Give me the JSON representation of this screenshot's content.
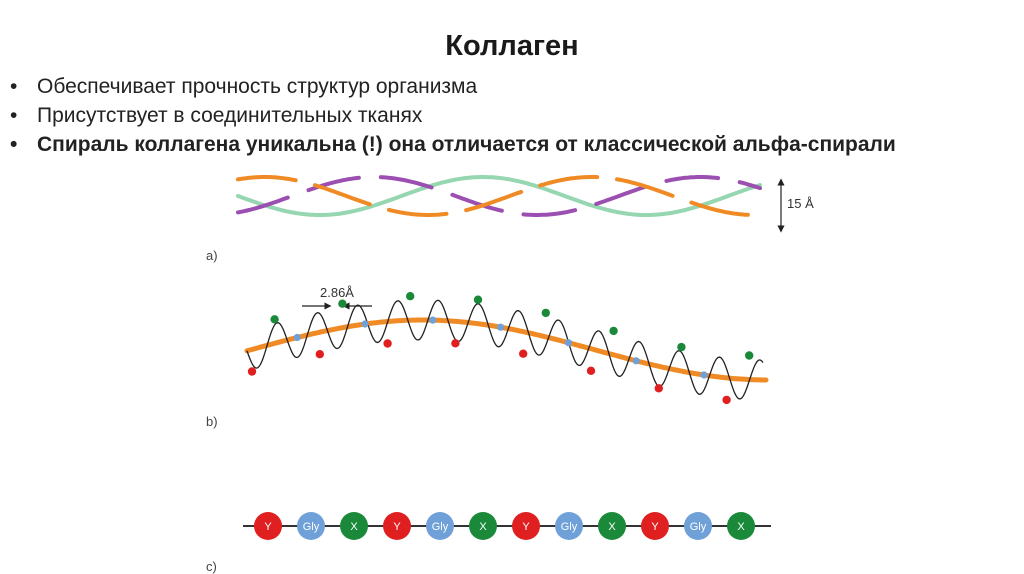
{
  "slide": {
    "title": "Коллаген",
    "bullets": [
      {
        "text": "Обеспечивает прочность структур организма",
        "bold": false
      },
      {
        "text": "Присутствует в соединительных тканях",
        "bold": false
      },
      {
        "text": "Спираль коллагена уникальна (!) она отличается от классической альфа-спирали",
        "bold": true
      }
    ]
  },
  "figure": {
    "panel_a": {
      "label": "a)",
      "dimension": "15 Å"
    },
    "panel_b": {
      "label": "b)",
      "rise": "2.86Å"
    },
    "panel_c": {
      "label": "c)",
      "beads": [
        "Y",
        "Gly",
        "X",
        "Y",
        "Gly",
        "X",
        "Y",
        "Gly",
        "X",
        "Y",
        "Gly",
        "X"
      ]
    },
    "colors": {
      "orange": "#f08a24",
      "purple": "#9b4fb0",
      "mint": "#96d6b0",
      "red": "#e02020",
      "green": "#1a8a3a",
      "blue": "#6fa0d8",
      "dark": "#222222"
    }
  }
}
